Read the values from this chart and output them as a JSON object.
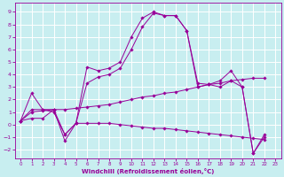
{
  "xlabel": "Windchill (Refroidissement éolien,°C)",
  "background_color": "#c8eef0",
  "grid_color": "#ffffff",
  "line_color": "#990099",
  "xlim": [
    -0.5,
    23.5
  ],
  "ylim": [
    -2.7,
    9.7
  ],
  "yticks": [
    -2,
    -1,
    0,
    1,
    2,
    3,
    4,
    5,
    6,
    7,
    8,
    9
  ],
  "xticks": [
    0,
    1,
    2,
    3,
    4,
    5,
    6,
    7,
    8,
    9,
    10,
    11,
    12,
    13,
    14,
    15,
    16,
    17,
    18,
    19,
    20,
    21,
    22,
    23
  ],
  "series": [
    {
      "x": [
        0,
        1,
        2,
        3,
        4,
        5,
        6,
        7,
        8,
        9,
        10,
        11,
        12,
        13,
        14,
        15,
        16,
        17,
        18,
        19,
        20,
        21,
        22
      ],
      "y": [
        0.3,
        2.5,
        1.2,
        1.2,
        -0.8,
        0.1,
        4.6,
        4.3,
        4.5,
        5.0,
        7.0,
        8.5,
        9.0,
        8.7,
        8.7,
        7.5,
        3.0,
        3.2,
        3.5,
        4.3,
        3.0,
        -2.3,
        -0.8
      ]
    },
    {
      "x": [
        0,
        1,
        2,
        3,
        4,
        5,
        6,
        7,
        8,
        9,
        10,
        11,
        12,
        13,
        14,
        15,
        16,
        17,
        18,
        19,
        20,
        21,
        22
      ],
      "y": [
        0.3,
        1.2,
        1.2,
        1.0,
        -0.8,
        0.1,
        3.3,
        3.8,
        4.0,
        4.5,
        6.0,
        7.8,
        8.9,
        8.7,
        8.7,
        7.5,
        3.3,
        3.2,
        3.0,
        3.5,
        3.0,
        -2.3,
        -1.0
      ]
    },
    {
      "x": [
        0,
        1,
        2,
        3,
        4,
        5,
        6,
        7,
        8,
        9,
        10,
        11,
        12,
        13,
        14,
        15,
        16,
        17,
        18,
        19,
        20,
        21,
        22
      ],
      "y": [
        0.3,
        0.5,
        0.5,
        1.2,
        -1.3,
        0.1,
        0.1,
        0.1,
        0.1,
        0.0,
        -0.1,
        -0.2,
        -0.3,
        -0.3,
        -0.4,
        -0.5,
        -0.6,
        -0.7,
        -0.8,
        -0.9,
        -1.0,
        -1.1,
        -1.2
      ]
    },
    {
      "x": [
        0,
        1,
        2,
        3,
        4,
        5,
        6,
        7,
        8,
        9,
        10,
        11,
        12,
        13,
        14,
        15,
        16,
        17,
        18,
        19,
        20,
        21,
        22
      ],
      "y": [
        0.3,
        1.0,
        1.1,
        1.2,
        1.2,
        1.3,
        1.4,
        1.5,
        1.6,
        1.8,
        2.0,
        2.2,
        2.3,
        2.5,
        2.6,
        2.8,
        3.0,
        3.2,
        3.3,
        3.5,
        3.6,
        3.7,
        3.7
      ]
    }
  ]
}
